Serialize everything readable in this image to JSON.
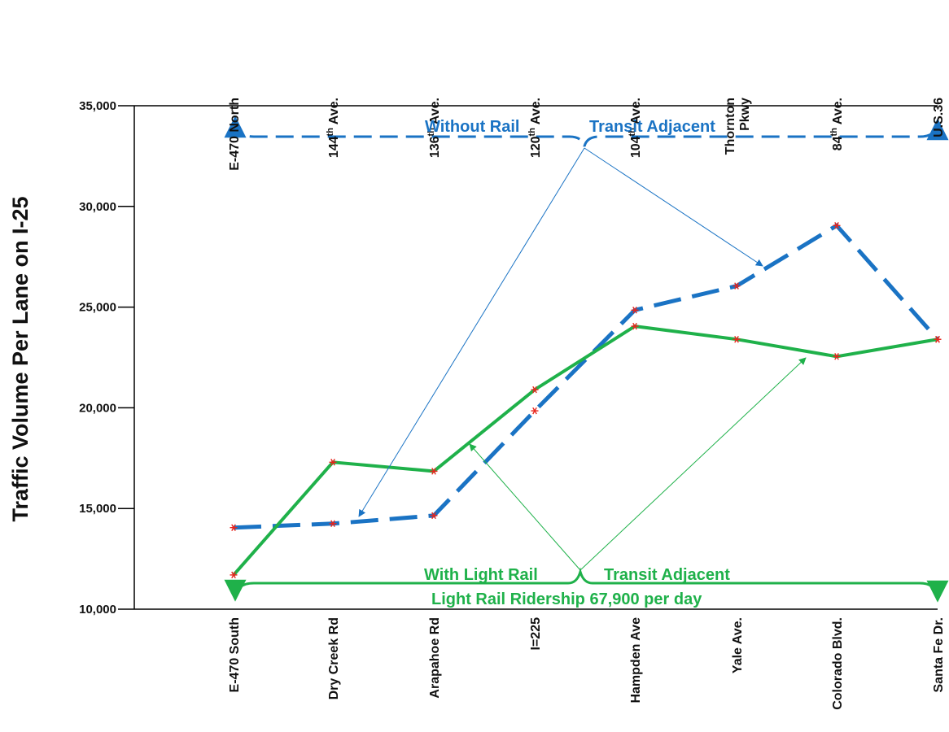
{
  "colors": {
    "without_rail": "#1a73c4",
    "with_rail": "#1fb14a",
    "marker": "#e8241c",
    "axis": "#000000"
  },
  "chart_data": {
    "type": "line",
    "ylabel": "Traffic Volume Per Lane on I-25",
    "ylim": [
      10000,
      35000
    ],
    "yticks": [
      "10,000",
      "15,000",
      "20,000",
      "25,000",
      "30,000",
      "35,000"
    ],
    "ytick_values": [
      10000,
      15000,
      20000,
      25000,
      30000,
      35000
    ],
    "categories_bottom": [
      "E-470 South",
      "Dry Creek Rd",
      "Arapahoe Rd",
      "I=225",
      "Hampden Ave",
      "Yale Ave.",
      "Colorado Blvd.",
      "Santa Fe Dr."
    ],
    "categories_top": [
      {
        "lines": [
          {
            "text": "E-470 North"
          }
        ]
      },
      {
        "lines": [
          {
            "text": "144",
            "sup": "th",
            "tail": " Ave."
          }
        ]
      },
      {
        "lines": [
          {
            "text": "136",
            "sup": "th",
            "tail": " Ave."
          }
        ]
      },
      {
        "lines": [
          {
            "text": "120",
            "sup": "th",
            "tail": " Ave."
          }
        ]
      },
      {
        "lines": [
          {
            "text": "104",
            "sup": "th",
            "tail": " Ave."
          }
        ]
      },
      {
        "lines": [
          {
            "text": "Thornton"
          },
          {
            "text": "Pkwy"
          }
        ]
      },
      {
        "lines": [
          {
            "text": "84",
            "sup": "th",
            "tail": " Ave."
          }
        ]
      },
      {
        "lines": [
          {
            "text": "U.S.36"
          }
        ]
      }
    ],
    "series": [
      {
        "key": "without",
        "style": "dashed",
        "values": [
          14050,
          14250,
          14650,
          19850,
          24850,
          26050,
          29050,
          23400
        ]
      },
      {
        "key": "with",
        "style": "solid",
        "values": [
          11700,
          17300,
          16850,
          20900,
          24050,
          23400,
          22550,
          23400
        ]
      }
    ],
    "annotations": {
      "without_rail_1": "Without  Rail",
      "without_rail_2": "Transit Adjacent",
      "with_rail_1": "With Light Rail",
      "with_rail_2": "Transit Adjacent",
      "ridership": "Light Rail Ridership 67,900 per day"
    }
  }
}
